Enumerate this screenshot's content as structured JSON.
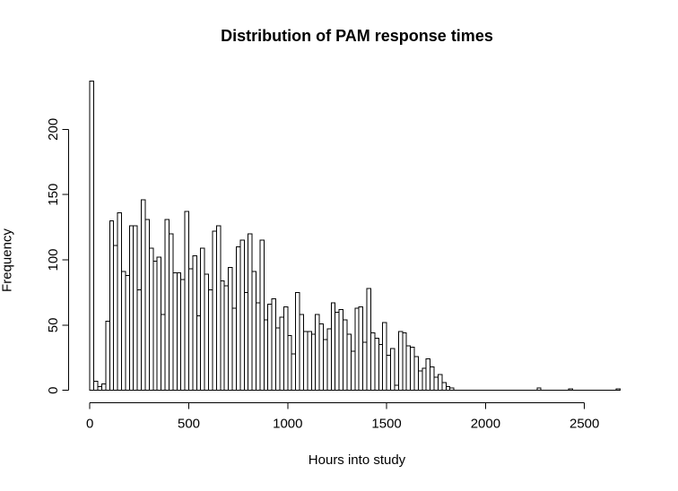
{
  "figure": {
    "title": "Distribution of PAM response times",
    "xlabel": "Hours into study",
    "ylabel": "Frequency"
  },
  "chart_data": {
    "type": "bar",
    "subtype": "histogram",
    "title": "Distribution of PAM response times",
    "xlabel": "Hours into study",
    "ylabel": "Frequency",
    "bin_start": 0,
    "bin_width": 20,
    "xlim": [
      0,
      2700
    ],
    "ylim": [
      0,
      240
    ],
    "x_ticks": [
      0,
      500,
      1000,
      1500,
      2000,
      2500
    ],
    "y_ticks": [
      0,
      50,
      100,
      150,
      200
    ],
    "grid": "off",
    "legend": "none",
    "bar_fill": "#ffffff",
    "bar_stroke": "#000000",
    "axis_color": "#000000",
    "frequencies": [
      237,
      7,
      3,
      5,
      53,
      130,
      111,
      136,
      91,
      88,
      126,
      126,
      77,
      146,
      131,
      109,
      99,
      102,
      58,
      131,
      120,
      90,
      90,
      85,
      137,
      93,
      103,
      57,
      109,
      89,
      77,
      122,
      126,
      84,
      80,
      94,
      63,
      110,
      115,
      75,
      120,
      91,
      67,
      115,
      54,
      66,
      70,
      48,
      56,
      64,
      42,
      28,
      75,
      58,
      45,
      45,
      43,
      58,
      51,
      39,
      47,
      67,
      60,
      62,
      54,
      43,
      30,
      63,
      64,
      37,
      78,
      44,
      40,
      35,
      52,
      27,
      32,
      4,
      45,
      44,
      34,
      33,
      26,
      15,
      17,
      24,
      18,
      10,
      12,
      6,
      3,
      2,
      0,
      0,
      0,
      0,
      0,
      0,
      0,
      0,
      0,
      0,
      0,
      0,
      0,
      0,
      0,
      0,
      0,
      0,
      0,
      0,
      0,
      2,
      0,
      0,
      0,
      0,
      0,
      0,
      0,
      1,
      0,
      0,
      0,
      0,
      0,
      0,
      0,
      0,
      0,
      0,
      0,
      1
    ]
  }
}
